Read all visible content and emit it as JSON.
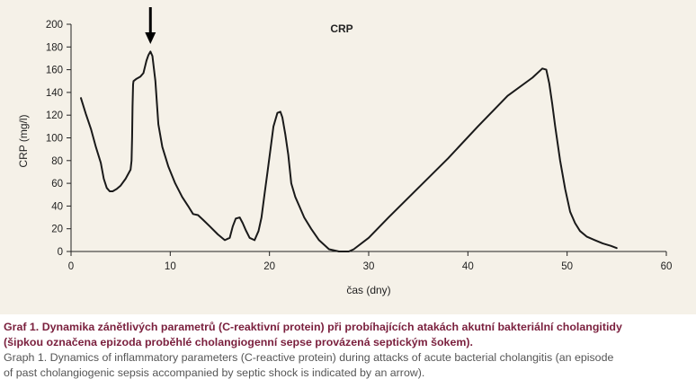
{
  "chart_data": {
    "type": "line",
    "title": "CRP",
    "xlabel": "čas (dny)",
    "ylabel": "CRP (mg/l)",
    "xlim": [
      0,
      60
    ],
    "ylim": [
      0,
      200
    ],
    "xticks": [
      0,
      10,
      20,
      30,
      40,
      50,
      60
    ],
    "yticks": [
      0,
      20,
      40,
      60,
      80,
      100,
      120,
      140,
      160,
      180,
      200
    ],
    "grid": false,
    "legend": "none",
    "line_color": "#1a1a1a",
    "arrow_x": 8,
    "series": [
      {
        "x": [
          1,
          1.5,
          2,
          2.5,
          3,
          3.3,
          3.6,
          3.9,
          4.2,
          4.6,
          5,
          5.5,
          6,
          6.1,
          6.15,
          6.2,
          6.25,
          6.3,
          6.6,
          7,
          7.3,
          7.6,
          7.8,
          8,
          8.2,
          8.5,
          8.8,
          9.2,
          9.8,
          10.5,
          11.2,
          11.8,
          12.3,
          12.8,
          13.3,
          14,
          14.8,
          15.5,
          16,
          16.3,
          16.6,
          17,
          17.3,
          17.6,
          18,
          18.5,
          18.9,
          19.2,
          19.5,
          19.8,
          20.1,
          20.4,
          20.8,
          21.1,
          21.3,
          21.6,
          21.9,
          22.2,
          22.6,
          23,
          23.5,
          24.2,
          25,
          26,
          27,
          27.6,
          28,
          28.5,
          30,
          32,
          35,
          38,
          41,
          44,
          46.5,
          47.5,
          47.9,
          48.2,
          48.5,
          48.8,
          49.3,
          49.8,
          50.3,
          50.8,
          51.3,
          52,
          52.8,
          53.6,
          54.4,
          55
        ],
        "y": [
          135,
          121,
          108,
          92,
          78,
          64,
          56,
          53,
          53,
          55,
          58,
          64,
          72,
          80,
          100,
          128,
          147,
          150,
          152,
          154,
          157,
          168,
          173,
          176,
          172,
          150,
          112,
          92,
          75,
          60,
          48,
          40,
          33,
          32,
          28,
          22,
          15,
          10,
          12,
          22,
          29,
          30,
          25,
          19,
          12,
          10,
          18,
          30,
          50,
          70,
          90,
          110,
          122,
          123,
          118,
          103,
          85,
          60,
          48,
          40,
          30,
          20,
          10,
          2,
          0,
          0,
          0,
          2,
          12,
          30,
          56,
          82,
          110,
          137,
          153,
          161,
          160,
          148,
          130,
          110,
          80,
          55,
          35,
          25,
          18,
          13,
          10,
          7,
          5,
          3
        ]
      }
    ]
  },
  "caption": {
    "cz_line1": "Graf 1. Dynamika zánětlivých parametrů (C-reaktivní protein) při probíhajících atakách akutní bakteriální cholangitidy",
    "cz_line2": "(šipkou označena epizoda proběhlé cholangiogenní sepse provázená septickým šokem).",
    "en_line1": "Graph 1. Dynamics of inflammatory parameters (C-reactive protein) during attacks of acute bacterial cholangitis (an episode",
    "en_line2": "of past cholangiogenic sepsis accompanied by septic shock is indicated by an arrow)."
  }
}
